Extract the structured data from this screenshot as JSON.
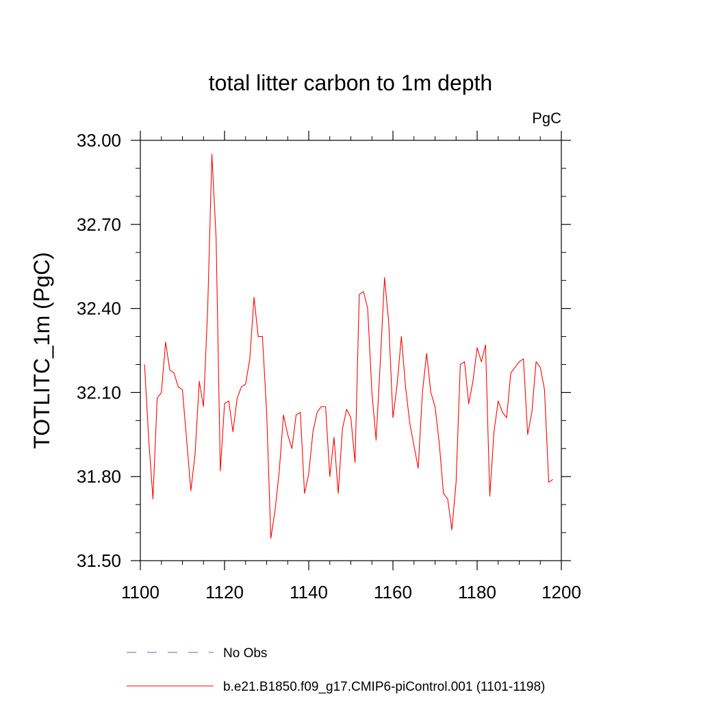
{
  "chart_data": {
    "type": "line",
    "title": "total litter carbon to 1m depth",
    "units_label": "PgC",
    "xlabel": "",
    "ylabel": "TOTLITC_1m  (PgC)",
    "xlim": [
      1100,
      1200
    ],
    "ylim": [
      31.5,
      33.0
    ],
    "x_ticks": [
      1100,
      1120,
      1140,
      1160,
      1180,
      1200
    ],
    "x_tick_labels": [
      "1100",
      "1120",
      "1140",
      "1160",
      "1180",
      "1200"
    ],
    "y_ticks": [
      31.5,
      31.8,
      32.1,
      32.4,
      32.7,
      33.0
    ],
    "y_tick_labels": [
      "31.50",
      "31.80",
      "32.10",
      "32.40",
      "32.70",
      "33.00"
    ],
    "legend": [
      {
        "label": "No Obs",
        "color": "#6a5acd",
        "style": "dashed"
      },
      {
        "label": "b.e21.B1850.f09_g17.CMIP6-piControl.001 (1101-1198)",
        "color": "#ff0000",
        "style": "solid"
      }
    ],
    "series": [
      {
        "name": "b.e21.B1850.f09_g17.CMIP6-piControl.001 (1101-1198)",
        "color": "#ff0000",
        "x_start": 1101,
        "x_step": 1,
        "values": [
          32.2,
          31.93,
          31.72,
          32.08,
          32.1,
          32.28,
          32.18,
          32.17,
          32.12,
          32.11,
          31.93,
          31.75,
          31.88,
          32.14,
          32.05,
          32.4,
          32.95,
          32.65,
          31.82,
          32.06,
          32.07,
          31.96,
          32.08,
          32.12,
          32.13,
          32.22,
          32.44,
          32.3,
          32.3,
          32.03,
          31.58,
          31.68,
          31.82,
          32.02,
          31.95,
          31.9,
          32.02,
          32.03,
          31.74,
          31.81,
          31.96,
          32.03,
          32.05,
          32.05,
          31.8,
          31.94,
          31.74,
          31.97,
          32.04,
          32.01,
          31.85,
          32.45,
          32.46,
          32.4,
          32.1,
          31.93,
          32.21,
          32.51,
          32.35,
          32.01,
          32.13,
          32.3,
          32.12,
          31.99,
          31.91,
          31.83,
          32.1,
          32.24,
          32.1,
          32.05,
          31.92,
          31.74,
          31.72,
          31.61,
          31.78,
          32.2,
          32.21,
          32.06,
          32.14,
          32.26,
          32.21,
          32.27,
          31.73,
          31.96,
          32.07,
          32.03,
          32.01,
          32.17,
          32.19,
          32.21,
          32.22,
          31.95,
          32.03,
          32.21,
          32.19,
          32.11,
          31.78,
          31.79
        ]
      }
    ]
  }
}
